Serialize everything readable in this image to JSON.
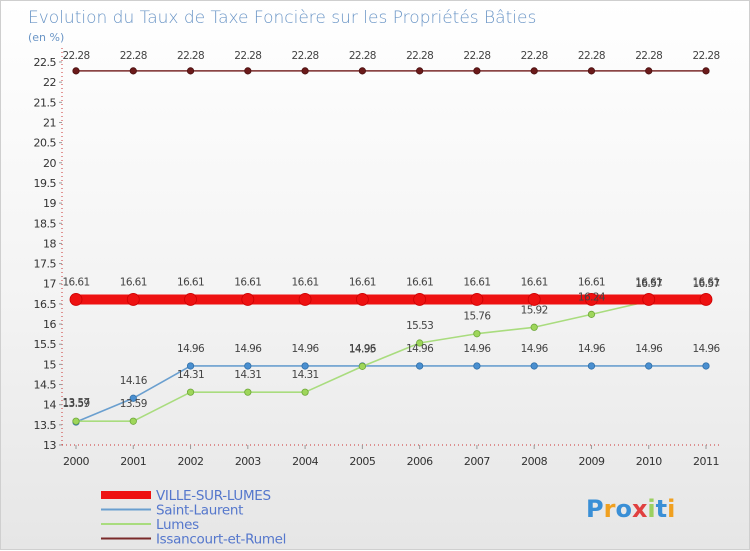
{
  "chart_data": {
    "type": "line",
    "title": "Evolution du Taux de Taxe Foncière sur les Propriétés Bâties",
    "ylabel": "(en %)",
    "xlabel": "",
    "categories": [
      "2000",
      "2001",
      "2002",
      "2003",
      "2004",
      "2005",
      "2006",
      "2007",
      "2008",
      "2009",
      "2010",
      "2011"
    ],
    "ylim": [
      13,
      22.5
    ],
    "yticks": [
      "13",
      "13.5",
      "14",
      "14.5",
      "15",
      "15.5",
      "16",
      "16.5",
      "17",
      "17.5",
      "18",
      "18.5",
      "19",
      "19.5",
      "20",
      "20.5",
      "21",
      "21.5",
      "22",
      "22.5"
    ],
    "series": [
      {
        "name": "VILLE-SUR-LUMES",
        "color": "#ee1111",
        "values": [
          16.61,
          16.61,
          16.61,
          16.61,
          16.61,
          16.61,
          16.61,
          16.61,
          16.61,
          16.61,
          16.61,
          16.61
        ],
        "labels": [
          "16.61",
          "16.61",
          "16.61",
          "16.61",
          "16.61",
          "16.61",
          "16.61",
          "16.61",
          "16.61",
          "16.61",
          "16.61",
          "16.61"
        ]
      },
      {
        "name": "Saint-Laurent",
        "color": "#6a9fcf",
        "values": [
          13.57,
          14.16,
          14.96,
          14.96,
          14.96,
          14.96,
          14.96,
          14.96,
          14.96,
          14.96,
          14.96,
          14.96
        ],
        "labels": [
          "13.57",
          "14.16",
          "14.96",
          "14.96",
          "14.96",
          "14.96",
          "14.96",
          "14.96",
          "14.96",
          "14.96",
          "14.96",
          "14.96"
        ]
      },
      {
        "name": "Lumes",
        "color": "#a9dc7e",
        "values": [
          13.59,
          13.59,
          14.31,
          14.31,
          14.31,
          14.95,
          15.53,
          15.76,
          15.92,
          16.24,
          16.57,
          16.57
        ],
        "labels": [
          "13.59",
          "13.59",
          "14.31",
          "14.31",
          "14.31",
          "14.95",
          "15.53",
          "15.76",
          "15.92",
          "16.24",
          "16.57",
          "16.57"
        ]
      },
      {
        "name": "Issancourt-et-Rumel",
        "color": "#7a2a2a",
        "values": [
          22.28,
          22.28,
          22.28,
          22.28,
          22.28,
          22.28,
          22.28,
          22.28,
          22.28,
          22.28,
          22.28,
          22.28
        ],
        "labels": [
          "22.28",
          "22.28",
          "22.28",
          "22.28",
          "22.28",
          "22.28",
          "22.28",
          "22.28",
          "22.28",
          "22.28",
          "22.28",
          "22.28"
        ]
      }
    ],
    "legend": [
      "VILLE-SUR-LUMES",
      "Saint-Laurent",
      "Lumes",
      "Issancourt-et-Rumel"
    ]
  },
  "logo": {
    "text": "Proxiti"
  }
}
